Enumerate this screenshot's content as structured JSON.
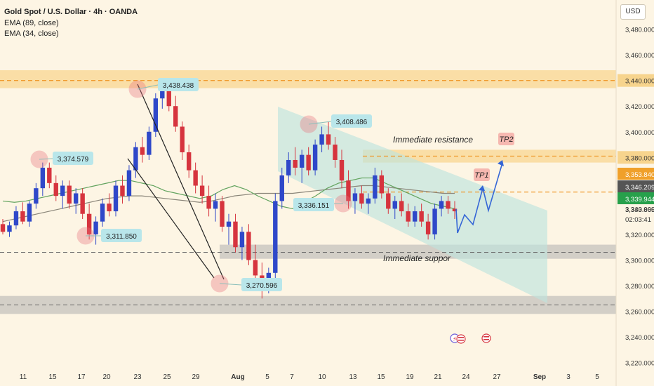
{
  "header": {
    "title": "Gold Spot / U.S. Dollar · 4h · OANDA",
    "ema1": "EMA (89, close)",
    "ema2": "EMA (34, close)",
    "currency": "USD"
  },
  "colors": {
    "up": "#2f48c9",
    "down": "#d6343e",
    "ema_fast": "#62a35e",
    "ema_slow": "#8a8579",
    "zone": "#f9cf7d",
    "support": "#a9a9a9",
    "channel": "#bfe3dd",
    "projection": "#3566d6",
    "marker": "#e9707c"
  },
  "chart_data": {
    "type": "candlestick",
    "ylim": [
      3210,
      3500
    ],
    "y_ticks": [
      3220,
      3240,
      3260,
      3280,
      3300,
      3320,
      3340,
      3360,
      3380,
      3400,
      3420,
      3440,
      3460,
      3480
    ],
    "y_tick_labels": [
      "3,220.000",
      "3,240.000",
      "3,260.000",
      "3,280.000",
      "3,300.000",
      "3,320.000",
      "3,340.000",
      "3,360.000",
      "3,380.000",
      "3,400.000",
      "3,420.000",
      "3,440.000",
      "3,460.000",
      "3,480.000"
    ],
    "x_tick_labels": [
      "11",
      "15",
      "17",
      "20",
      "23",
      "25",
      "29",
      "Aug",
      "5",
      "7",
      "10",
      "13",
      "15",
      "19",
      "21",
      "24",
      "27",
      "Sep",
      "3",
      "5"
    ],
    "candles": [
      [
        3328,
        3332,
        3320,
        3322
      ],
      [
        3322,
        3330,
        3318,
        3327
      ],
      [
        3327,
        3342,
        3324,
        3338
      ],
      [
        3338,
        3345,
        3328,
        3330
      ],
      [
        3330,
        3346,
        3326,
        3344
      ],
      [
        3344,
        3360,
        3340,
        3356
      ],
      [
        3356,
        3376,
        3350,
        3372
      ],
      [
        3372,
        3376,
        3356,
        3360
      ],
      [
        3360,
        3366,
        3346,
        3350
      ],
      [
        3350,
        3362,
        3340,
        3358
      ],
      [
        3358,
        3362,
        3340,
        3344
      ],
      [
        3344,
        3356,
        3336,
        3352
      ],
      [
        3352,
        3356,
        3332,
        3336
      ],
      [
        3336,
        3344,
        3316,
        3320
      ],
      [
        3320,
        3334,
        3312,
        3330
      ],
      [
        3330,
        3348,
        3326,
        3344
      ],
      [
        3344,
        3352,
        3334,
        3338
      ],
      [
        3338,
        3362,
        3334,
        3358
      ],
      [
        3358,
        3366,
        3344,
        3350
      ],
      [
        3350,
        3374,
        3346,
        3370
      ],
      [
        3370,
        3392,
        3364,
        3388
      ],
      [
        3388,
        3396,
        3376,
        3382
      ],
      [
        3382,
        3404,
        3378,
        3400
      ],
      [
        3400,
        3430,
        3396,
        3426
      ],
      [
        3426,
        3440,
        3418,
        3432
      ],
      [
        3432,
        3436,
        3416,
        3420
      ],
      [
        3420,
        3428,
        3400,
        3404
      ],
      [
        3404,
        3408,
        3378,
        3384
      ],
      [
        3384,
        3390,
        3364,
        3370
      ],
      [
        3370,
        3376,
        3352,
        3358
      ],
      [
        3358,
        3366,
        3344,
        3350
      ],
      [
        3350,
        3358,
        3334,
        3340
      ],
      [
        3340,
        3352,
        3330,
        3346
      ],
      [
        3346,
        3350,
        3322,
        3326
      ],
      [
        3326,
        3336,
        3312,
        3330
      ],
      [
        3330,
        3336,
        3306,
        3310
      ],
      [
        3310,
        3326,
        3300,
        3322
      ],
      [
        3322,
        3328,
        3296,
        3300
      ],
      [
        3300,
        3312,
        3282,
        3288
      ],
      [
        3288,
        3298,
        3270,
        3278
      ],
      [
        3278,
        3294,
        3274,
        3290
      ],
      [
        3290,
        3352,
        3286,
        3346
      ],
      [
        3346,
        3372,
        3340,
        3366
      ],
      [
        3366,
        3384,
        3360,
        3378
      ],
      [
        3378,
        3388,
        3366,
        3372
      ],
      [
        3372,
        3386,
        3360,
        3382
      ],
      [
        3382,
        3388,
        3366,
        3370
      ],
      [
        3370,
        3394,
        3366,
        3390
      ],
      [
        3390,
        3404,
        3384,
        3398
      ],
      [
        3398,
        3408,
        3386,
        3390
      ],
      [
        3390,
        3396,
        3372,
        3378
      ],
      [
        3378,
        3386,
        3356,
        3362
      ],
      [
        3362,
        3370,
        3340,
        3346
      ],
      [
        3346,
        3356,
        3336,
        3352
      ],
      [
        3352,
        3358,
        3340,
        3344
      ],
      [
        3344,
        3352,
        3336,
        3348
      ],
      [
        3348,
        3372,
        3344,
        3366
      ],
      [
        3366,
        3370,
        3348,
        3352
      ],
      [
        3352,
        3356,
        3336,
        3340
      ],
      [
        3340,
        3350,
        3332,
        3346
      ],
      [
        3346,
        3352,
        3334,
        3338
      ],
      [
        3338,
        3344,
        3326,
        3330
      ],
      [
        3330,
        3342,
        3326,
        3338
      ],
      [
        3338,
        3344,
        3326,
        3330
      ],
      [
        3330,
        3336,
        3316,
        3320
      ],
      [
        3320,
        3344,
        3316,
        3340
      ],
      [
        3340,
        3350,
        3334,
        3346
      ],
      [
        3346,
        3350,
        3336,
        3340
      ],
      [
        3340,
        3346,
        3332,
        3338
      ]
    ],
    "ema_34": [
      3346,
      3345,
      3346,
      3348,
      3350,
      3352,
      3354,
      3356,
      3358,
      3360,
      3362,
      3362,
      3360,
      3358,
      3354,
      3352,
      3350,
      3348,
      3350,
      3355,
      3358,
      3355,
      3350,
      3346,
      3342,
      3340,
      3345,
      3350,
      3356,
      3360,
      3362,
      3364,
      3364,
      3360,
      3356,
      3352,
      3348,
      3344,
      3342,
      3340
    ],
    "ema_89": [
      3330,
      3332,
      3334,
      3336,
      3338,
      3340,
      3342,
      3344,
      3346,
      3348,
      3349,
      3350,
      3350,
      3349,
      3348,
      3347,
      3346,
      3345,
      3346,
      3348,
      3350,
      3351,
      3352,
      3352,
      3352,
      3352,
      3353,
      3354,
      3355,
      3356,
      3357,
      3358,
      3358,
      3357,
      3356,
      3355,
      3354,
      3353,
      3352,
      3352
    ],
    "swing_labels": [
      {
        "text": "3,374.579",
        "price": 3374.579
      },
      {
        "text": "3,311.850",
        "price": 3311.85
      },
      {
        "text": "3,438.438",
        "price": 3438.438
      },
      {
        "text": "3,270.596",
        "price": 3270.596
      },
      {
        "text": "3,408.486",
        "price": 3408.486
      },
      {
        "text": "3,336.151",
        "price": 3336.151
      }
    ],
    "resistance_zone": [
      3434,
      3448
    ],
    "resistance_level": 3440,
    "immediate_resistance": [
      3376,
      3386
    ],
    "tp_level": 3353,
    "support_zones": [
      [
        3301,
        3312
      ],
      [
        3258,
        3272
      ]
    ],
    "support_levels": [
      3306,
      3265
    ],
    "annotations": [
      "Immediate resistance",
      "Immediate suppor",
      "TP1",
      "TP2"
    ],
    "price_tags": [
      {
        "text": "3,353.840",
        "price": 3353.84,
        "color": "#f0a02a"
      },
      {
        "text": "3,346.209",
        "price": 3346.209,
        "color": "#555555"
      },
      {
        "text": "3,339.944",
        "price": 3339.944,
        "color": "#27a04b"
      }
    ],
    "last_price": "3,333.865",
    "countdown": "02:03:41"
  }
}
